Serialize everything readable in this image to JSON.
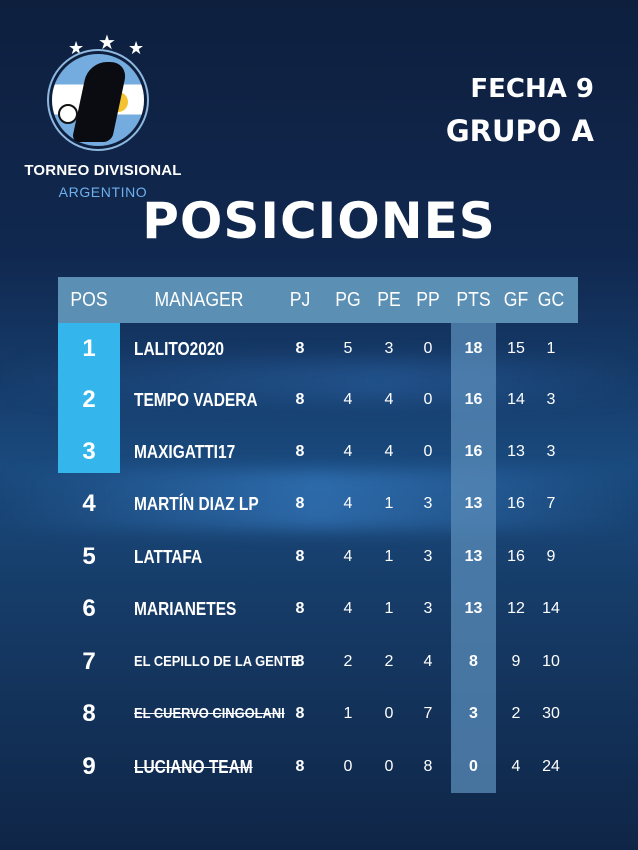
{
  "logo": {
    "title": "TORNEO DIVISIONAL",
    "subtitle": "ARGENTINO"
  },
  "header": {
    "fecha": "FECHA 9",
    "grupo": "GRUPO A"
  },
  "title": "POSICIONES",
  "table": {
    "columns": [
      "POS",
      "MANAGER",
      "PJ",
      "PG",
      "PE",
      "PP",
      "PTS",
      "GF",
      "GC"
    ],
    "rows": [
      {
        "pos": "1",
        "manager": "LALITO2020",
        "pj": "8",
        "pg": "5",
        "pe": "3",
        "pp": "0",
        "pts": "18",
        "gf": "15",
        "gc": "1"
      },
      {
        "pos": "2",
        "manager": "TEMPO VADERA",
        "pj": "8",
        "pg": "4",
        "pe": "4",
        "pp": "0",
        "pts": "16",
        "gf": "14",
        "gc": "3"
      },
      {
        "pos": "3",
        "manager": "MAXIGATTI17",
        "pj": "8",
        "pg": "4",
        "pe": "4",
        "pp": "0",
        "pts": "16",
        "gf": "13",
        "gc": "3"
      },
      {
        "pos": "4",
        "manager": "MARTÍN DIAZ LP",
        "pj": "8",
        "pg": "4",
        "pe": "1",
        "pp": "3",
        "pts": "13",
        "gf": "16",
        "gc": "7"
      },
      {
        "pos": "5",
        "manager": "LATTAFA",
        "pj": "8",
        "pg": "4",
        "pe": "1",
        "pp": "3",
        "pts": "13",
        "gf": "16",
        "gc": "9"
      },
      {
        "pos": "6",
        "manager": "MARIANETES",
        "pj": "8",
        "pg": "4",
        "pe": "1",
        "pp": "3",
        "pts": "13",
        "gf": "12",
        "gc": "14"
      },
      {
        "pos": "7",
        "manager": "EL CEPILLO DE LA GENTE",
        "pj": "8",
        "pg": "2",
        "pe": "2",
        "pp": "4",
        "pts": "8",
        "gf": "9",
        "gc": "10"
      },
      {
        "pos": "8",
        "manager": "EL CUERVO CINGOLANI",
        "pj": "8",
        "pg": "1",
        "pe": "0",
        "pp": "7",
        "pts": "3",
        "gf": "2",
        "gc": "30"
      },
      {
        "pos": "9",
        "manager": "LUCIANO TEAM",
        "pj": "8",
        "pg": "0",
        "pe": "0",
        "pp": "8",
        "pts": "0",
        "gf": "4",
        "gc": "24"
      }
    ]
  },
  "colors": {
    "highlight": "#34b5ec",
    "header_bg": "#5b8fb4"
  }
}
